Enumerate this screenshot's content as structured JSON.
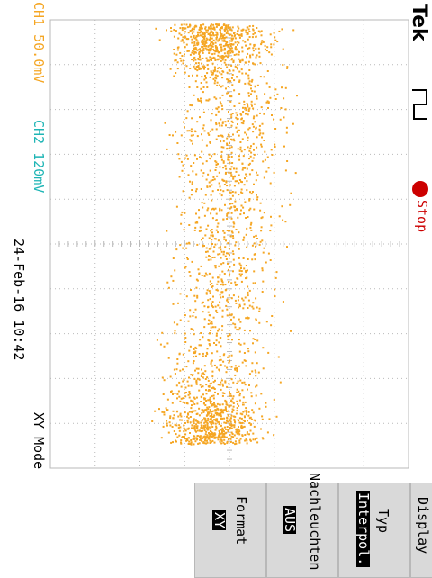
{
  "brand": "Tek",
  "trigger": {
    "state": "Stop",
    "state_color": "#cc0000",
    "icon": "rising-edge-trigger-icon"
  },
  "channels": {
    "ch1": {
      "label": "CH1",
      "scale": "50.0mV",
      "color": "#f5a623"
    },
    "ch2": {
      "label": "CH2",
      "scale": "120mV",
      "color": "#1fb5b5"
    }
  },
  "datetime": "24-Feb-16 10:42",
  "mode_label": "XY Mode",
  "menu": {
    "title": "Display",
    "items": [
      {
        "label": "Typ",
        "value": "Interpol."
      },
      {
        "label": "Nachleuchten",
        "value": "AUS"
      },
      {
        "label": "Format",
        "value": "XY"
      }
    ]
  },
  "colors": {
    "trace": "#f5a623",
    "grid": "#b9b9b9",
    "background": "#ffffff"
  }
}
